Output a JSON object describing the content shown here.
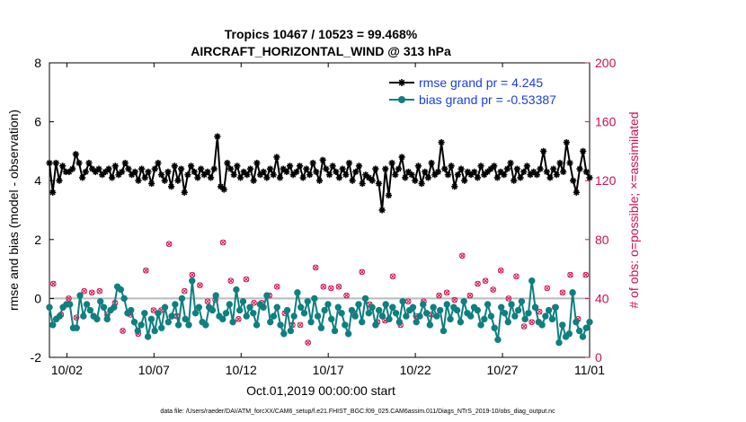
{
  "chart_data": {
    "type": "line",
    "title_line1": "Tropics 10467 / 10523 = 99.468%",
    "title_line2": "AIRCRAFT_HORIZONTAL_WIND @ 313 hPa",
    "ylabel_left": "rmse and bias (model - observation)",
    "ylabel_right": "# of obs: o=possible; ×=assimilated",
    "xlabel": "Oct.01,2019 00:00:00 start",
    "footer": "data file: /Users/raeder/DAI/ATM_forcXX/CAM6_setup/f.e21.FHIST_BGC.f09_025.CAM6assim.011/Diags_NTrS_2019-10/obs_diag_output.nc",
    "xlim": [
      1,
      32
    ],
    "ylim_left": [
      -2,
      8
    ],
    "ylim_right": [
      0,
      200
    ],
    "x_ticks": [
      2,
      7,
      12,
      17,
      22,
      27,
      32
    ],
    "x_tick_labels": [
      "10/02",
      "10/07",
      "10/12",
      "10/17",
      "10/22",
      "10/27",
      "11/01"
    ],
    "y_left_ticks": [
      -2,
      0,
      2,
      4,
      6,
      8
    ],
    "y_right_ticks": [
      0,
      40,
      80,
      120,
      160,
      200
    ],
    "zero_line": 0,
    "colors": {
      "rmse": "#000000",
      "bias": "#0f7f7f",
      "obs": "#d01050",
      "zero": "#bbbbbb",
      "legend_text": "#1a3fe0"
    },
    "series": [
      {
        "name": "rmse grand pr = 4.245",
        "marker": "asterisk",
        "values": [
          4.6,
          3.6,
          4.6,
          4.0,
          4.5,
          4.3,
          4.3,
          4.4,
          4.9,
          4.6,
          4.1,
          4.3,
          4.6,
          4.4,
          4.3,
          4.4,
          4.2,
          4.3,
          4.4,
          4.1,
          4.5,
          4.2,
          4.3,
          4.6,
          4.4,
          4.2,
          4.3,
          4.0,
          4.4,
          4.1,
          4.3,
          3.9,
          4.4,
          4.6,
          4.2,
          4.0,
          4.3,
          3.8,
          4.5,
          4.0,
          4.4,
          3.6,
          4.2,
          4.5,
          4.3,
          4.1,
          4.4,
          4.2,
          4.3,
          4.1,
          4.4,
          5.5,
          3.8,
          3.7,
          4.6,
          4.4,
          4.2,
          4.5,
          4.1,
          4.3,
          4.2,
          4.4,
          4.0,
          4.6,
          4.2,
          4.3,
          4.1,
          4.4,
          4.2,
          4.8,
          4.1,
          4.4,
          4.3,
          4.5,
          4.2,
          4.3,
          4.5,
          4.1,
          4.4,
          4.2,
          4.6,
          4.3,
          4.0,
          4.7,
          4.4,
          4.2,
          4.5,
          4.3,
          4.1,
          4.4,
          4.2,
          4.6,
          4.0,
          4.3,
          4.5,
          3.9,
          4.2,
          4.1,
          4.0,
          4.4,
          3.9,
          3.0,
          4.4,
          3.5,
          4.6,
          4.2,
          4.4,
          4.8,
          4.1,
          4.3,
          4.2,
          4.0,
          4.5,
          3.9,
          4.3,
          4.1,
          4.6,
          4.2,
          4.3,
          5.3,
          4.4,
          4.2,
          4.5,
          3.8,
          4.2,
          4.4,
          4.0,
          4.3,
          4.2,
          4.3,
          4.1,
          4.5,
          4.2,
          4.3,
          4.4,
          4.5,
          4.1,
          4.3,
          4.2,
          4.4,
          4.6,
          4.0,
          4.4,
          4.1,
          4.3,
          4.5,
          4.2,
          4.3,
          4.2,
          4.4,
          5.0,
          4.3,
          4.1,
          4.4,
          4.2,
          4.6,
          4.3,
          5.3,
          4.6,
          4.0,
          3.6,
          4.4,
          5.0,
          4.3,
          4.1
        ]
      },
      {
        "name": "bias grand pr = -0.53387",
        "marker": "circle",
        "values": [
          -0.3,
          -0.9,
          -0.7,
          -0.6,
          -0.3,
          -0.2,
          -0.2,
          -1.0,
          -1.0,
          0.1,
          -0.6,
          -0.2,
          -0.4,
          -0.6,
          -0.7,
          -0.1,
          -0.3,
          -0.7,
          -0.4,
          -0.3,
          0.4,
          0.3,
          0.0,
          -0.5,
          -0.4,
          -0.8,
          -1.1,
          -0.9,
          -0.5,
          -1.3,
          -0.7,
          -1.1,
          -0.5,
          -1.0,
          -0.3,
          -0.8,
          -0.6,
          -0.2,
          -0.9,
          0.0,
          -0.7,
          -0.9,
          0.6,
          -0.5,
          -0.3,
          -0.8,
          -0.9,
          -0.3,
          -0.4,
          0.1,
          -0.6,
          -0.7,
          -0.5,
          -0.2,
          -0.8,
          0.3,
          -0.4,
          -0.1,
          -0.6,
          -0.3,
          -0.5,
          -0.9,
          -0.2,
          -0.3,
          0.1,
          -0.8,
          -0.6,
          -0.3,
          -0.9,
          -1.2,
          -0.4,
          -1.1,
          -0.6,
          0.2,
          -0.3,
          -0.5,
          -0.1,
          -0.8,
          0.0,
          -0.6,
          -1.0,
          -0.4,
          -0.2,
          -0.7,
          -1.1,
          -0.3,
          -0.5,
          -0.9,
          -1.2,
          -0.4,
          -0.6,
          -0.2,
          -0.8,
          0.0,
          -0.5,
          -0.3,
          -0.9,
          -0.4,
          -0.6,
          -0.2,
          -0.7,
          -0.3,
          -0.5,
          -0.8,
          -0.1,
          -0.6,
          -0.4,
          -0.3,
          -0.8,
          -0.6,
          -0.2,
          -0.5,
          -0.9,
          -0.3,
          -0.6,
          -0.4,
          -1.1,
          -0.2,
          -0.7,
          -0.3,
          -0.4,
          -0.8,
          -0.1,
          -0.5,
          -0.6,
          -0.3,
          -0.4,
          -0.9,
          -0.7,
          -0.2,
          -0.6,
          -1.0,
          -1.4,
          -0.3,
          -0.5,
          -0.8,
          -0.2,
          -0.6,
          -0.4,
          -0.1,
          -0.7,
          -0.5,
          0.6,
          -0.3,
          -0.8,
          -0.9,
          -0.6,
          -0.4,
          -0.7,
          -0.3,
          -1.5,
          -0.9,
          -1.3,
          -1.2,
          0.2,
          -0.8,
          -1.1,
          -1.3,
          -1.0,
          -0.8
        ]
      }
    ],
    "obs_possible": [
      50,
      29,
      40,
      27,
      45,
      44,
      45,
      29,
      37,
      18,
      29,
      16,
      59,
      32,
      32,
      77,
      28,
      45,
      56,
      49,
      38,
      39,
      78,
      52,
      26,
      53,
      37,
      37,
      42,
      48,
      30,
      22,
      22,
      10,
      61,
      48,
      47,
      48,
      42,
      30,
      58,
      36,
      24,
      25,
      55,
      22,
      38,
      28,
      38,
      29,
      42,
      44,
      39,
      69,
      42,
      50,
      52,
      46,
      59,
      40,
      55,
      21,
      24,
      31,
      47,
      34,
      44,
      56,
      26,
      56
    ],
    "obs_assimilated": [
      50,
      29,
      40,
      27,
      45,
      44,
      45,
      29,
      37,
      18,
      29,
      16,
      59,
      32,
      32,
      77,
      28,
      45,
      56,
      49,
      38,
      39,
      78,
      52,
      26,
      53,
      37,
      37,
      42,
      48,
      30,
      22,
      22,
      10,
      61,
      48,
      47,
      48,
      42,
      30,
      58,
      36,
      24,
      25,
      55,
      22,
      38,
      28,
      38,
      29,
      42,
      44,
      39,
      69,
      42,
      50,
      52,
      46,
      59,
      40,
      55,
      21,
      24,
      31,
      47,
      34,
      44,
      56,
      26,
      56
    ]
  }
}
